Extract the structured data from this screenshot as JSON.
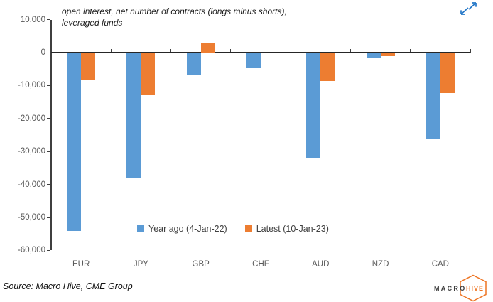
{
  "colors": {
    "series_blue": "#5B9BD5",
    "series_orange": "#ED7D31",
    "axis": "#3F3F3F",
    "tick_label": "#595959",
    "expand_icon_blue": "#2377C8",
    "logo_orange": "#EE7523",
    "logo_dark": "#3D3D3D"
  },
  "chart_data": {
    "type": "bar",
    "title": "open interest, net number of contracts (longs minus shorts),\nleveraged funds",
    "categories": [
      "EUR",
      "JPY",
      "GBP",
      "CHF",
      "AUD",
      "NZD",
      "CAD"
    ],
    "series": [
      {
        "name": "Year ago (4-Jan-22)",
        "color": "#5B9BD5",
        "values": [
          -54000,
          -38000,
          -7000,
          -4500,
          -32000,
          -1500,
          -26000
        ]
      },
      {
        "name": "Latest (10-Jan-23)",
        "color": "#ED7D31",
        "values": [
          -8500,
          -13000,
          3000,
          -100,
          -8700,
          -1000,
          -12300
        ]
      }
    ],
    "ylim": [
      -60000,
      10000
    ],
    "yticks": [
      10000,
      0,
      -10000,
      -20000,
      -30000,
      -40000,
      -50000,
      -60000
    ],
    "ytick_labels": [
      "10,000",
      "0",
      "-10,000",
      "-20,000",
      "-30,000",
      "-40,000",
      "-50,000",
      "-60,000"
    ],
    "grid": false,
    "legend_position": "bottom"
  },
  "icons": {
    "expand": "expand-icon"
  },
  "source": "Source: Macro Hive, CME Group",
  "logo": {
    "macro": "MACRO",
    "hive": "HIVE"
  }
}
